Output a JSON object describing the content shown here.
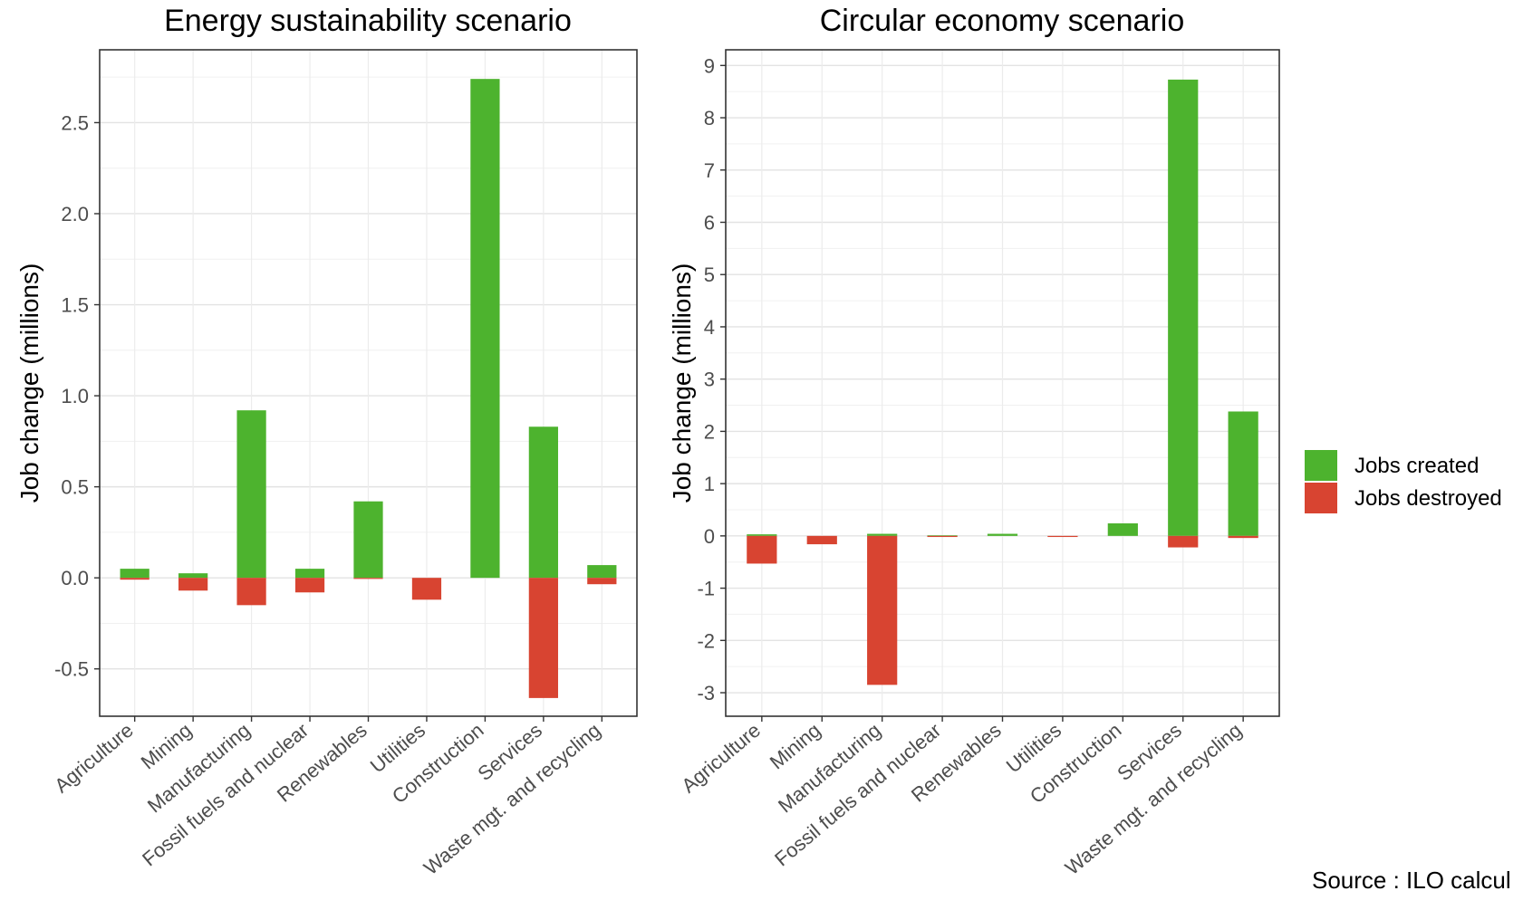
{
  "chart_data": [
    {
      "type": "bar",
      "stacked": true,
      "title": "Energy sustainability scenario",
      "ylabel": "Job change (millions)",
      "ylim": [
        -0.76,
        2.9
      ],
      "yticks": [
        -0.5,
        0.0,
        0.5,
        1.0,
        1.5,
        2.0,
        2.5
      ],
      "ytick_labels": [
        "-0.5",
        "0.0",
        "0.5",
        "1.0",
        "1.5",
        "2.0",
        "2.5"
      ],
      "categories": [
        "Agriculture",
        "Mining",
        "Manufacturing",
        "Fossil fuels and nuclear",
        "Renewables",
        "Utilities",
        "Construction",
        "Services",
        "Waste mgt. and recycling"
      ],
      "series": [
        {
          "name": "Jobs created",
          "values": [
            0.05,
            0.025,
            0.92,
            0.05,
            0.42,
            0.0,
            2.74,
            0.83,
            0.07
          ]
        },
        {
          "name": "Jobs destroyed",
          "values": [
            -0.01,
            -0.07,
            -0.15,
            -0.08,
            -0.005,
            -0.12,
            0.0,
            -0.66,
            -0.035
          ]
        }
      ],
      "grid": true
    },
    {
      "type": "bar",
      "stacked": true,
      "title": "Circular economy scenario",
      "ylabel": "Job change (millions)",
      "ylim": [
        -3.45,
        9.3
      ],
      "yticks": [
        -3,
        -2,
        -1,
        0,
        1,
        2,
        3,
        4,
        5,
        6,
        7,
        8,
        9
      ],
      "ytick_labels": [
        "-3",
        "-2",
        "-1",
        "0",
        "1",
        "2",
        "3",
        "4",
        "5",
        "6",
        "7",
        "8",
        "9"
      ],
      "categories": [
        "Agriculture",
        "Mining",
        "Manufacturing",
        "Fossil fuels and nuclear",
        "Renewables",
        "Utilities",
        "Construction",
        "Services",
        "Waste mgt. and recycling"
      ],
      "series": [
        {
          "name": "Jobs created",
          "values": [
            0.03,
            0.0,
            0.04,
            0.01,
            0.04,
            0.0,
            0.24,
            8.73,
            2.38
          ]
        },
        {
          "name": "Jobs destroyed",
          "values": [
            -0.53,
            -0.16,
            -2.85,
            -0.01,
            0.0,
            -0.02,
            0.0,
            -0.22,
            -0.04
          ]
        }
      ],
      "grid": true
    }
  ],
  "legend": {
    "items": [
      {
        "label": "Jobs created",
        "color": "#4db32e"
      },
      {
        "label": "Jobs destroyed",
        "color": "#d84431"
      }
    ],
    "placement": "right"
  },
  "colors": {
    "created": "#4db32e",
    "destroyed": "#d84431"
  },
  "source": "Source : ILO calcul"
}
